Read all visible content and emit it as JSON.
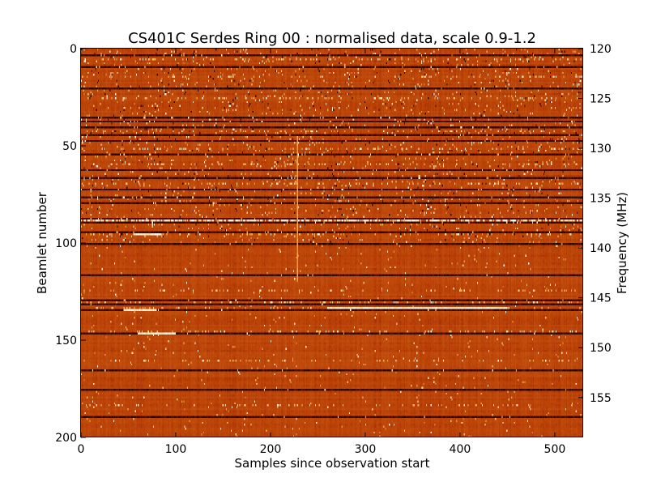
{
  "chart_data": {
    "type": "heatmap",
    "title": "CS401C Serdes Ring 00 : normalised data, scale 0.9-1.2",
    "xlabel": "Samples since observation start",
    "ylabel": "Beamlet number",
    "y2label": "Frequency (MHz)",
    "xlim": [
      0,
      530
    ],
    "ylim": [
      200,
      0
    ],
    "y2lim": [
      120,
      159
    ],
    "x_ticks": [
      0,
      100,
      200,
      300,
      400,
      500
    ],
    "y_ticks": [
      0,
      50,
      100,
      150,
      200
    ],
    "y2_ticks": [
      120,
      125,
      130,
      135,
      140,
      145,
      150,
      155
    ],
    "color_scale": [
      0.9,
      1.2
    ],
    "colormap": [
      "#000000",
      "#6e1400",
      "#b83e06",
      "#c85a12",
      "#f2b24c",
      "#ffffff"
    ],
    "dark_rows": [
      3,
      9,
      20,
      35,
      37,
      40,
      44,
      47,
      54,
      62,
      66,
      72,
      76,
      79,
      87,
      89,
      94,
      100,
      116,
      129,
      131,
      134,
      146,
      165,
      175,
      189
    ],
    "bright_rows": [
      5,
      14,
      25,
      42,
      51,
      59,
      69,
      88,
      95,
      124,
      130,
      133,
      145,
      160,
      183
    ],
    "bright_streaks": [
      {
        "beamlet": 95,
        "x_start": 55,
        "x_end": 85
      },
      {
        "beamlet": 133,
        "x_start": 260,
        "x_end": 450
      },
      {
        "beamlet": 134,
        "x_start": 45,
        "x_end": 80
      },
      {
        "beamlet": 88,
        "x_start": 0,
        "x_end": 530
      },
      {
        "beamlet": 146,
        "x_start": 60,
        "x_end": 100
      }
    ],
    "vertical_streak": {
      "x": 228,
      "beamlet_start": 45,
      "beamlet_end": 120
    }
  }
}
